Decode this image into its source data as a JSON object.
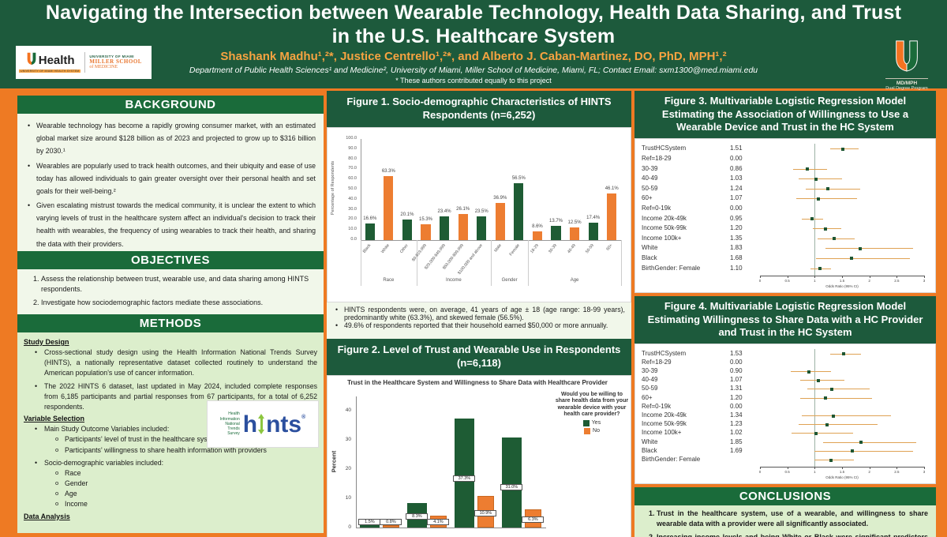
{
  "header": {
    "title": "Navigating the Intersection between Wearable Technology, Health Data Sharing, and Trust in the U.S. Healthcare System",
    "authors": "Shashank Madhu¹,²*, Justice Centrello¹,²*, and Alberto J. Caban-Martinez, DO, PhD, MPH¹,²",
    "affiliation": "Department of Public Health Sciences¹ and Medicine², University of Miami, Miller School of Medicine, Miami, FL; Contact Email: sxm1300@med.miami.edu",
    "equal_note": "* These authors contributed equally to this project",
    "logo_left": {
      "health": "Health",
      "sub": "UNIVERSITY OF MIAMI HEALTH SYSTEM",
      "school_line1": "UNIVERSITY OF MIAMI",
      "school_line2": "MILLER SCHOOL",
      "school_line3": "of MEDICINE"
    },
    "logo_right": {
      "line1": "MD/MPH",
      "line2": "Dual Degree Program"
    }
  },
  "left": {
    "background": {
      "title": "BACKGROUND",
      "bullets": [
        "Wearable technology has become a rapidly growing consumer market, with an estimated global market size around $128 billion as of 2023 and projected to grow up to $316 billion by 2030.¹",
        "Wearables are popularly used to track health outcomes, and their ubiquity and ease of use today has allowed individuals to gain greater oversight over their personal health and set goals for their well-being.²",
        "Given escalating mistrust towards the medical community, it is unclear the extent to which varying levels of trust in the healthcare system affect an individual's decision to track their health with wearables, the frequency of using wearables to track their health, and sharing the data with their providers."
      ]
    },
    "objectives": {
      "title": "OBJECTIVES",
      "items": [
        "Assess the relationship between trust, wearable use, and data sharing among HINTS respondents.",
        "Investigate how sociodemographic factors mediate these associations."
      ]
    },
    "methods": {
      "title": "METHODS",
      "study_design_heading": "Study Design",
      "study_design_bullets": [
        "Cross-sectional study design using the Health Information National Trends Survey (HINTS), a nationally representative dataset collected routinely to understand the American population's use of cancer information.",
        "The 2022 HINTS 6 dataset, last updated in May 2024, included complete responses from 6,185 participants and partial responses from 67 participants, for a total of 6,252 respondents."
      ],
      "variable_selection_heading": "Variable Selection",
      "variable_selection": [
        {
          "text": "Main Study Outcome Variables included:",
          "subs": [
            "Participants' level of trust in the healthcare system",
            "Participants' willingness to share health information with providers"
          ]
        },
        {
          "text": "Socio-demographic variables included:",
          "subs": [
            "Race",
            "Gender",
            "Age",
            "Income"
          ]
        }
      ],
      "data_analysis_heading": "Data Analysis",
      "hints_logo": {
        "stack": [
          "Health",
          "Information",
          "National",
          "Trends",
          "Survey"
        ],
        "brand_prefix": "h",
        "brand_suffix": "nts",
        "registered": "®"
      }
    }
  },
  "middle": {
    "fig1_title": "Figure 1. Socio-demographic Characteristics of HINTS Respondents (n=6,252)",
    "fig1_notes": [
      "HINTS respondents were, on average, 41 years of age ± 18 (age range: 18-99 years), predominantly white (63.3%), and skewed female (56.5%).",
      "49.6% of respondents reported that their household earned $50,000 or more annually."
    ],
    "fig2_title": "Figure 2. Level of Trust and Wearable Use in Respondents (n=6,118)"
  },
  "right": {
    "fig3_title": "Figure 3. Multivariable Logistic Regression Model Estimating the Association of Willingness to Use a Wearable Device and Trust in the HC System",
    "fig4_title": "Figure 4. Multivariable Logistic Regression Model Estimating Willingness to Share Data with a HC Provider and Trust in the HC System",
    "conclusions": {
      "title": "CONCLUSIONS",
      "items": [
        "Trust in the healthcare system, use of a wearable, and willingness to share wearable data with a provider were all significantly associated.",
        "Increasing income levels and being White or Black were significant predictors of"
      ]
    }
  },
  "colors": {
    "page_orange": "#EE7A23",
    "header_green": "#1D5A3C",
    "section_green": "#1A6B3A",
    "bar_green": "#1E5C34",
    "bar_orange": "#ED7D31",
    "ci_line": "#DFA254",
    "marker_green": "#1E5632"
  },
  "chart_data": [
    {
      "id": "fig1",
      "type": "bar",
      "title": "Figure 1. Socio-demographic Characteristics of HINTS Respondents (n=6,252)",
      "ylabel": "Percentage of Respondents",
      "ylim": [
        0,
        100
      ],
      "ytick_step": 10,
      "grid": false,
      "groups": [
        {
          "label": "Race",
          "bars": [
            {
              "label": "Black",
              "value": 16.6,
              "color": "green"
            },
            {
              "label": "White",
              "value": 63.3,
              "color": "orange"
            },
            {
              "label": "Other",
              "value": 20.1,
              "color": "green"
            }
          ]
        },
        {
          "label": "Income",
          "bars": [
            {
              "label": "$0-$19,999",
              "value": 15.3,
              "color": "orange"
            },
            {
              "label": "$20,000-$49,999",
              "value": 23.4,
              "color": "green"
            },
            {
              "label": "$50,000-$99,999",
              "value": 26.1,
              "color": "orange"
            },
            {
              "label": "$100,000 and above",
              "value": 23.5,
              "color": "green"
            }
          ]
        },
        {
          "label": "Gender",
          "bars": [
            {
              "label": "Male",
              "value": 36.9,
              "color": "orange"
            },
            {
              "label": "Female",
              "value": 56.5,
              "color": "green"
            }
          ]
        },
        {
          "label": "Age",
          "bars": [
            {
              "label": "18-29",
              "value": 8.6,
              "color": "orange"
            },
            {
              "label": "30-39",
              "value": 13.7,
              "color": "green"
            },
            {
              "label": "40-49",
              "value": 12.5,
              "color": "orange"
            },
            {
              "label": "50-59",
              "value": 17.4,
              "color": "green"
            },
            {
              "label": "60+",
              "value": 46.1,
              "color": "orange"
            }
          ]
        }
      ]
    },
    {
      "id": "fig2",
      "type": "bar",
      "title": "Trust in the Healthcare System and Willingness to Share Data with Healthcare Provider",
      "ylabel": "Percent",
      "ylim": [
        0,
        45
      ],
      "yticks": [
        0,
        10,
        20,
        30,
        40
      ],
      "legend_title": "Would you be willing to share health data from your wearable device with your health care provider?",
      "legend_position": "right",
      "series": [
        {
          "name": "Yes",
          "color": "#1E5C34",
          "values": [
            1.5,
            8.3,
            37.3,
            31.0
          ]
        },
        {
          "name": "No",
          "color": "#ED7D31",
          "values": [
            0.8,
            4.1,
            10.9,
            6.3
          ]
        }
      ],
      "bar_labels": [
        [
          "1.5%",
          "0.8%"
        ],
        [
          "8.3%",
          "4.1%"
        ],
        [
          "37.3%",
          "10.9%"
        ],
        [
          "31.0%",
          "6.3%"
        ]
      ],
      "note": "x-axis category labels are cut off at the bottom edge of the screenshot"
    },
    {
      "id": "fig3",
      "type": "scatter",
      "subtype": "forest-plot",
      "xlabel": "Odds Ratio (95% CI)",
      "xlim": [
        0,
        3
      ],
      "xticks": [
        0,
        0.5,
        1,
        1.5,
        2,
        2.5,
        3
      ],
      "rows": [
        {
          "label": "TrustHCSystem",
          "value": "1.51",
          "or": 1.51,
          "lo": 1.28,
          "hi": 1.8
        },
        {
          "label": "Ref=18-29",
          "value": "0.00"
        },
        {
          "label": "30-39",
          "value": "0.86",
          "or": 0.86,
          "lo": 0.6,
          "hi": 1.22
        },
        {
          "label": "40-49",
          "value": "1.03",
          "or": 1.03,
          "lo": 0.71,
          "hi": 1.5
        },
        {
          "label": "50-59",
          "value": "1.24",
          "or": 1.24,
          "lo": 0.84,
          "hi": 1.83
        },
        {
          "label": "60+",
          "value": "1.07",
          "or": 1.07,
          "lo": 0.66,
          "hi": 1.78
        },
        {
          "label": "Ref=0-19k",
          "value": "0.00"
        },
        {
          "label": "Income 20k-49k",
          "value": "0.95",
          "or": 0.95,
          "lo": 0.77,
          "hi": 1.16
        },
        {
          "label": "Income 50k-99k",
          "value": "1.20",
          "or": 1.2,
          "lo": 0.97,
          "hi": 1.48
        },
        {
          "label": "Income 100k+",
          "value": "1.35",
          "or": 1.35,
          "lo": 1.06,
          "hi": 1.73
        },
        {
          "label": "White",
          "value": "1.83",
          "or": 1.83,
          "lo": 1.2,
          "hi": 2.8
        },
        {
          "label": "Black",
          "value": "1.68",
          "or": 1.68,
          "lo": 1.03,
          "hi": 2.74
        },
        {
          "label": "BirthGender: Female",
          "value": "1.10",
          "or": 1.1,
          "lo": 0.93,
          "hi": 1.3
        }
      ]
    },
    {
      "id": "fig4",
      "type": "scatter",
      "subtype": "forest-plot",
      "xlabel": "Odds Ratio (95% CI)",
      "xlim": [
        0,
        3
      ],
      "xticks": [
        0,
        0.5,
        1,
        1.5,
        2,
        2.5,
        3
      ],
      "rows": [
        {
          "label": "TrustHCSystem",
          "value": "1.53",
          "or": 1.53,
          "lo": 1.28,
          "hi": 1.85
        },
        {
          "label": "Ref=18-29",
          "value": "0.00"
        },
        {
          "label": "30-39",
          "value": "0.90",
          "or": 0.9,
          "lo": 0.56,
          "hi": 1.3
        },
        {
          "label": "40-49",
          "value": "1.07",
          "or": 1.07,
          "lo": 0.73,
          "hi": 1.55
        },
        {
          "label": "50-59",
          "value": "1.31",
          "or": 1.31,
          "lo": 0.86,
          "hi": 2.0
        },
        {
          "label": "60+",
          "value": "1.20",
          "or": 1.2,
          "lo": 0.74,
          "hi": 2.05
        },
        {
          "label": "Ref=0-19k",
          "value": "0.00"
        },
        {
          "label": "Income 20k-49k",
          "value": "1.34",
          "or": 1.34,
          "lo": 0.76,
          "hi": 2.4
        },
        {
          "label": "Income 50k-99k",
          "value": "1.23",
          "or": 1.23,
          "lo": 0.7,
          "hi": 2.15
        },
        {
          "label": "Income 100k+",
          "value": "1.02",
          "or": 1.02,
          "lo": 0.58,
          "hi": 1.7
        },
        {
          "label": "White",
          "value": "1.85",
          "or": 1.85,
          "lo": 1.15,
          "hi": 2.85
        },
        {
          "label": "Black",
          "value": "1.69",
          "or": 1.69,
          "lo": 1.0,
          "hi": 2.8
        },
        {
          "label": "BirthGender: Female",
          "value": "",
          "or": 1.3,
          "lo": 1.0,
          "hi": 1.72
        }
      ]
    }
  ]
}
